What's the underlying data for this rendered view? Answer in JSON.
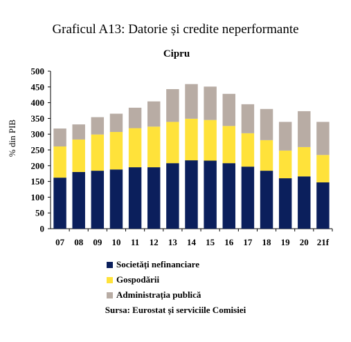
{
  "header": {
    "title": "Graficul A13: Datorie și credite neperformante"
  },
  "chart_data": {
    "type": "bar",
    "stacked": true,
    "title": "Cipru",
    "ylabel": "% din PIB",
    "xlabel": "",
    "ylim": [
      0,
      500
    ],
    "yticks": [
      0,
      50,
      100,
      150,
      200,
      250,
      300,
      350,
      400,
      450,
      500
    ],
    "categories": [
      "07",
      "08",
      "09",
      "10",
      "11",
      "12",
      "13",
      "14",
      "15",
      "16",
      "17",
      "18",
      "19",
      "20",
      "21f"
    ],
    "series": [
      {
        "name": "Societăți nefinanciare",
        "color": "#0b1f5c",
        "values": [
          162,
          180,
          184,
          188,
          195,
          195,
          208,
          217,
          216,
          208,
          197,
          184,
          160,
          166,
          147
        ]
      },
      {
        "name": "Gospodării",
        "color": "#ffe23a",
        "values": [
          99,
          103,
          115,
          119,
          124,
          129,
          131,
          132,
          129,
          118,
          106,
          97,
          88,
          93,
          87
        ]
      },
      {
        "name": "Administrația publică",
        "color": "#b8aca4",
        "values": [
          57,
          48,
          55,
          58,
          65,
          80,
          104,
          110,
          106,
          102,
          92,
          99,
          91,
          114,
          105
        ]
      }
    ],
    "grid": false,
    "legend_position": "bottom"
  },
  "footer": {
    "source": "Sursa: Eurostat și serviciile Comisiei"
  }
}
